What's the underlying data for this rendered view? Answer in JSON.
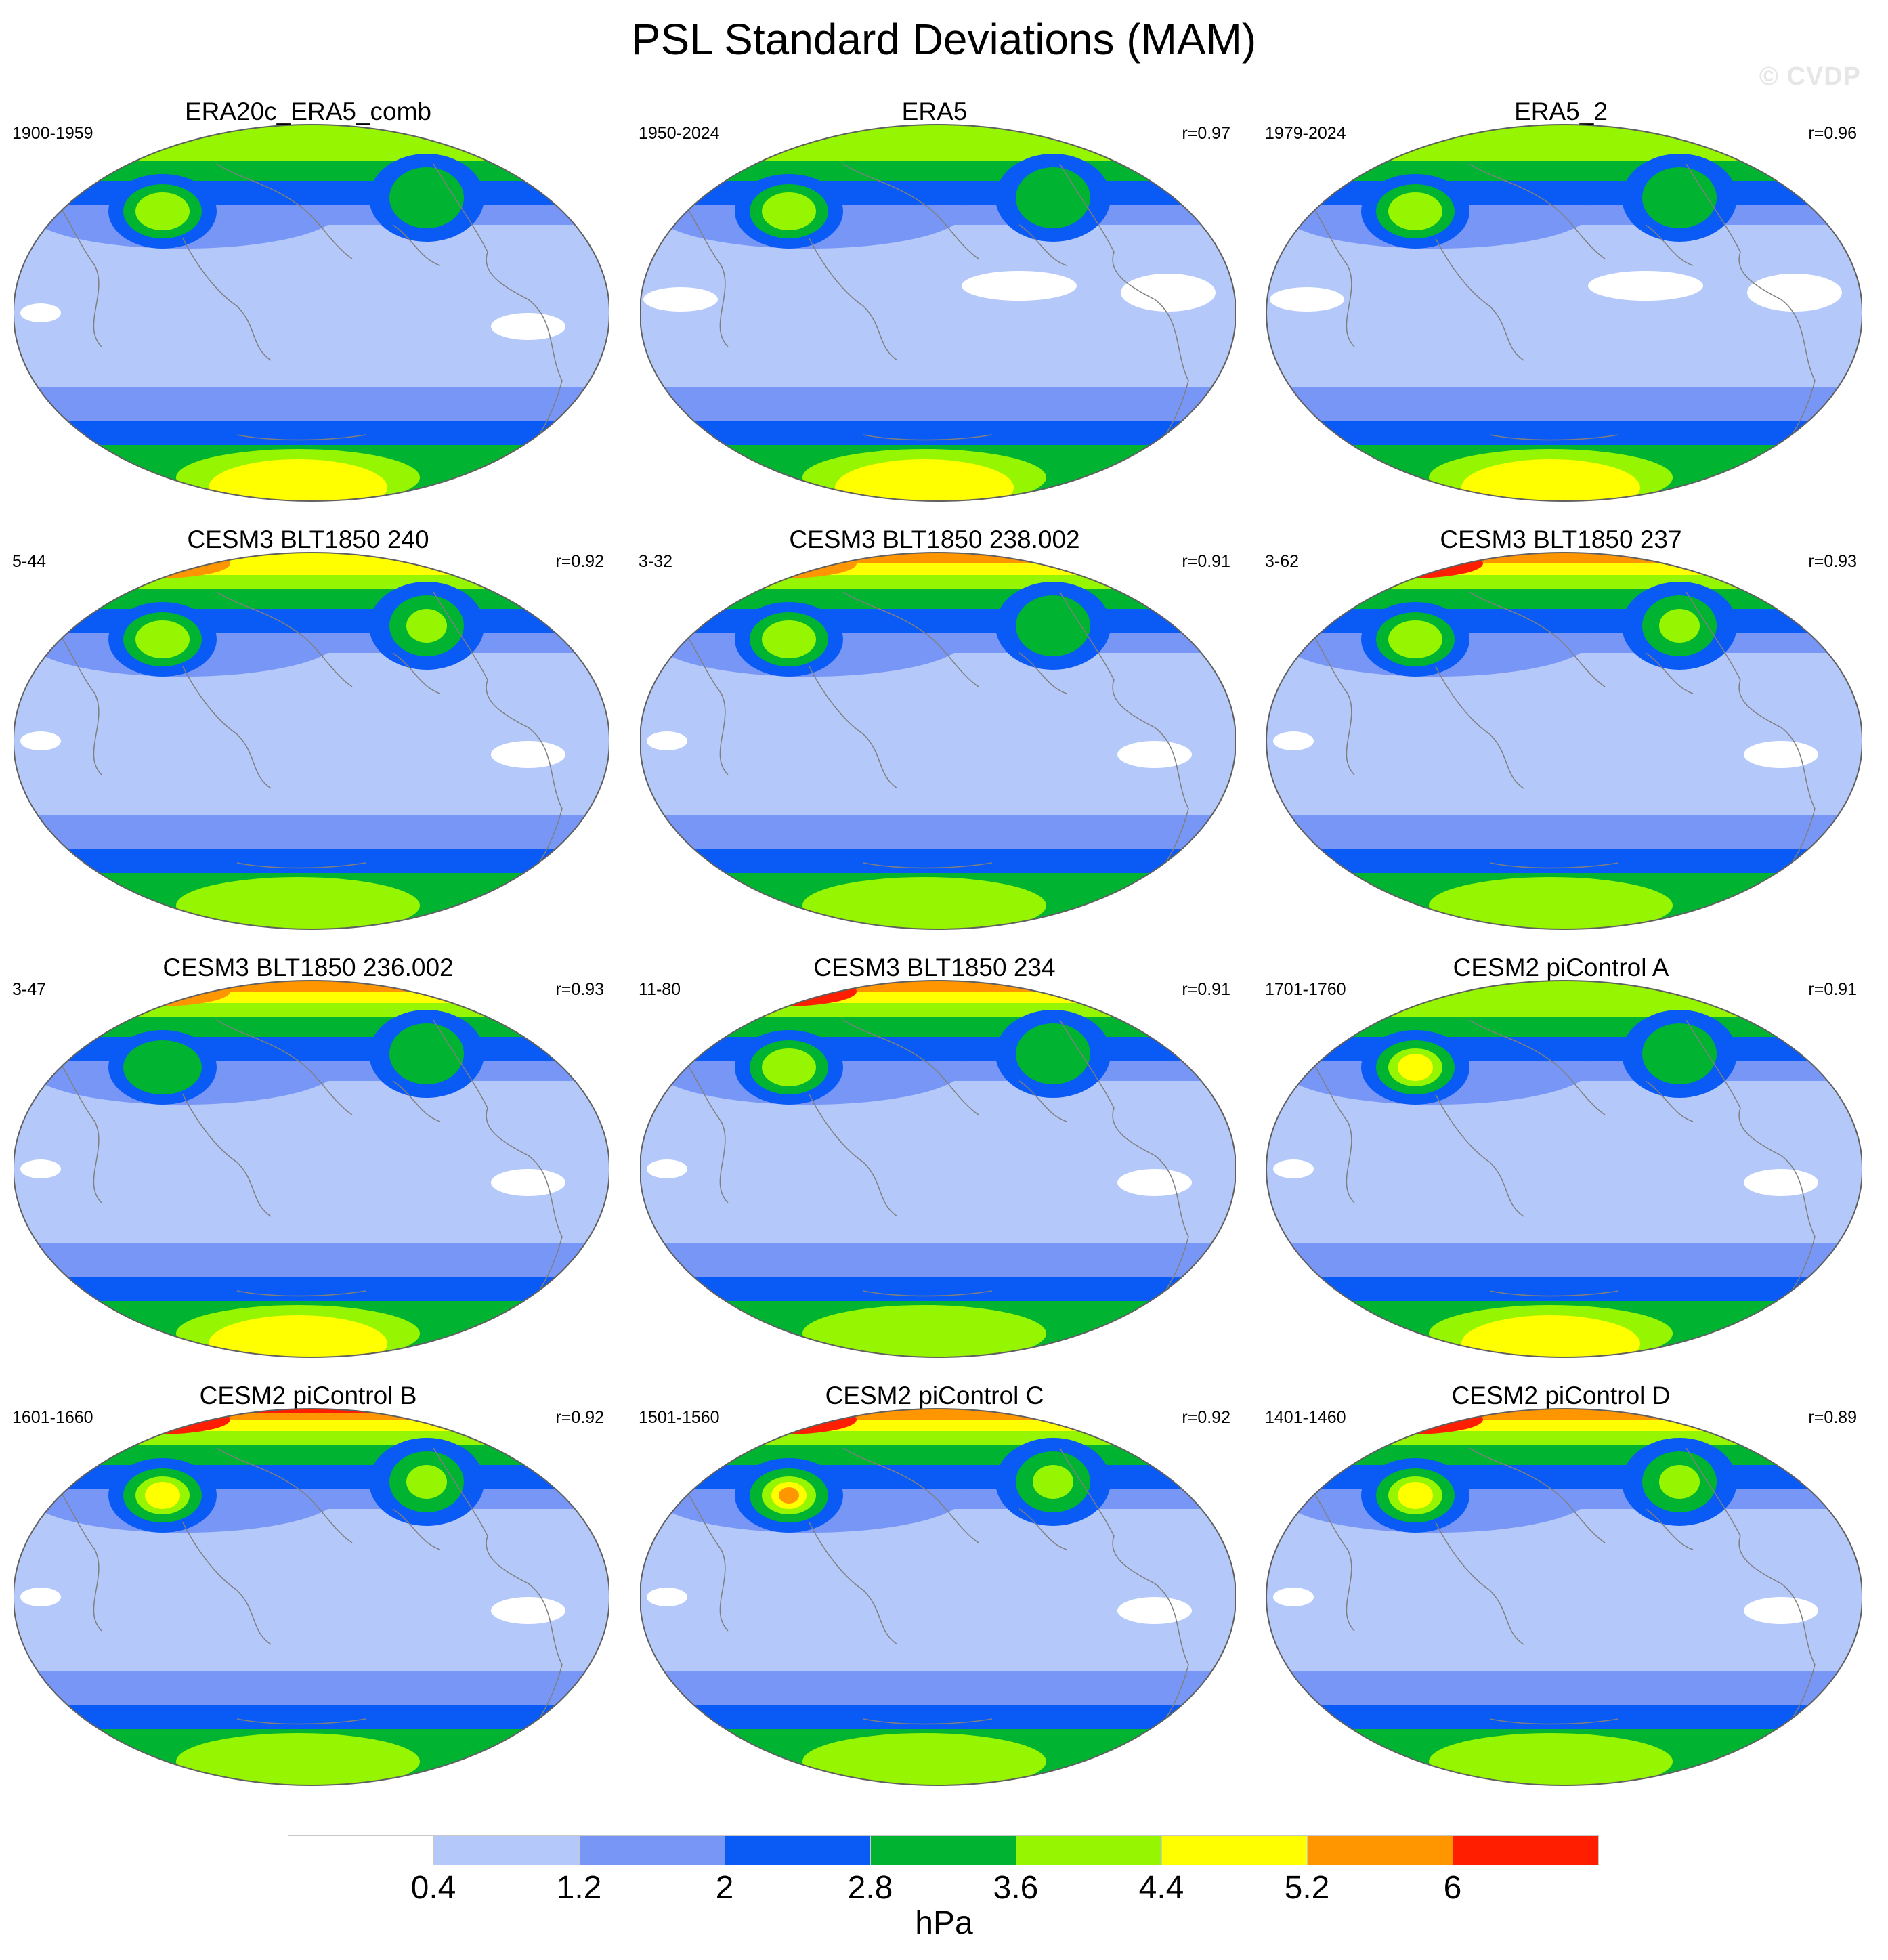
{
  "figure": {
    "title": "PSL Standard Deviations (MAM)",
    "watermark": "© CVDP"
  },
  "colorbar": {
    "units": "hPa",
    "ticks": [
      "0.4",
      "1.2",
      "2",
      "2.8",
      "3.6",
      "4.4",
      "5.2",
      "6"
    ],
    "levels": [
      0.4,
      1.2,
      2,
      2.8,
      3.6,
      4.4,
      5.2,
      6
    ],
    "colors": [
      "#ffffff",
      "#b4c8fa",
      "#7896f5",
      "#0a5af5",
      "#00b432",
      "#96f500",
      "#ffff00",
      "#ff9600",
      "#ff1e00"
    ]
  },
  "map_style": {
    "coastline_color": "#7f7f7f",
    "outline_color": "#606060"
  },
  "panels": [
    {
      "title": "ERA20c_ERA5_comb",
      "years": "1900-1959",
      "r": "",
      "profile": {
        "arctic": 4.6,
        "npac": 4.2,
        "natl": 3.4,
        "so": 4.8,
        "tropics": 1.0
      }
    },
    {
      "title": "ERA5",
      "years": "1950-2024",
      "r": "r=0.97",
      "profile": {
        "arctic": 4.6,
        "npac": 4.3,
        "natl": 3.5,
        "so": 5.0,
        "tropics": 0.3
      }
    },
    {
      "title": "ERA5_2",
      "years": "1979-2024",
      "r": "r=0.96",
      "profile": {
        "arctic": 4.7,
        "npac": 4.3,
        "natl": 3.6,
        "so": 5.1,
        "tropics": 0.3
      }
    },
    {
      "title": "CESM3 BLT1850 240",
      "years": "5-44",
      "r": "r=0.92",
      "profile": {
        "arctic": 5.4,
        "npac": 4.0,
        "natl": 4.0,
        "so": 4.6,
        "tropics": 0.6
      }
    },
    {
      "title": "CESM3 BLT1850 238.002",
      "years": "3-32",
      "r": "r=0.91",
      "profile": {
        "arctic": 5.6,
        "npac": 4.5,
        "natl": 3.8,
        "so": 4.4,
        "tropics": 0.6
      }
    },
    {
      "title": "CESM3 BLT1850 237",
      "years": "3-62",
      "r": "r=0.93",
      "profile": {
        "arctic": 6.2,
        "npac": 4.3,
        "natl": 4.0,
        "so": 4.7,
        "tropics": 0.6
      }
    },
    {
      "title": "CESM3 BLT1850 236.002",
      "years": "3-47",
      "r": "r=0.93",
      "profile": {
        "arctic": 5.6,
        "npac": 3.9,
        "natl": 3.9,
        "so": 4.8,
        "tropics": 0.6
      }
    },
    {
      "title": "CESM3 BLT1850 234",
      "years": "11-80",
      "r": "r=0.91",
      "profile": {
        "arctic": 6.0,
        "npac": 4.0,
        "natl": 3.6,
        "so": 4.3,
        "tropics": 0.6
      }
    },
    {
      "title": "CESM2 piControl A",
      "years": "1701-1760",
      "r": "r=0.91",
      "profile": {
        "arctic": 4.2,
        "npac": 5.5,
        "natl": 3.7,
        "so": 4.9,
        "tropics": 0.5
      }
    },
    {
      "title": "CESM2 piControl B",
      "years": "1601-1660",
      "r": "r=0.92",
      "profile": {
        "arctic": 6.4,
        "npac": 5.0,
        "natl": 4.4,
        "so": 4.2,
        "tropics": 0.5
      }
    },
    {
      "title": "CESM2 piControl C",
      "years": "1501-1560",
      "r": "r=0.92",
      "profile": {
        "arctic": 6.3,
        "npac": 6.2,
        "natl": 4.4,
        "so": 4.6,
        "tropics": 0.5
      }
    },
    {
      "title": "CESM2 piControl D",
      "years": "1401-1460",
      "r": "r=0.89",
      "profile": {
        "arctic": 6.1,
        "npac": 5.4,
        "natl": 4.3,
        "so": 4.4,
        "tropics": 0.5
      }
    }
  ]
}
